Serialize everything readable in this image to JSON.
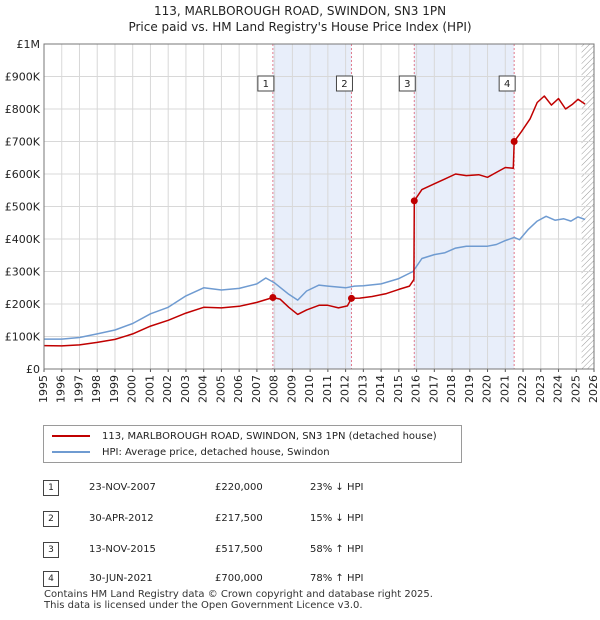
{
  "title_line1": "113, MARLBOROUGH ROAD, SWINDON, SN3 1PN",
  "title_line2": "Price paid vs. HM Land Registry's House Price Index (HPI)",
  "chart_data": {
    "type": "line",
    "title": "113, MARLBOROUGH ROAD, SWINDON, SN3 1PN - Price paid vs. HM Land Registry's House Price Index (HPI)",
    "xlim": [
      1995,
      2026
    ],
    "ylim": [
      0,
      1000000
    ],
    "xticks": [
      1995,
      1996,
      1997,
      1998,
      1999,
      2000,
      2001,
      2002,
      2003,
      2004,
      2005,
      2006,
      2007,
      2008,
      2009,
      2010,
      2011,
      2012,
      2013,
      2014,
      2015,
      2016,
      2017,
      2018,
      2019,
      2020,
      2021,
      2022,
      2023,
      2024,
      2025,
      2026
    ],
    "yticks": [
      {
        "v": 0,
        "label": "£0"
      },
      {
        "v": 100000,
        "label": "£100K"
      },
      {
        "v": 200000,
        "label": "£200K"
      },
      {
        "v": 300000,
        "label": "£300K"
      },
      {
        "v": 400000,
        "label": "£400K"
      },
      {
        "v": 500000,
        "label": "£500K"
      },
      {
        "v": 600000,
        "label": "£600K"
      },
      {
        "v": 700000,
        "label": "£700K"
      },
      {
        "v": 800000,
        "label": "£800K"
      },
      {
        "v": 900000,
        "label": "£900K"
      },
      {
        "v": 1000000,
        "label": "£1M"
      }
    ],
    "shaded_spans": [
      [
        2007.9,
        2012.33
      ],
      [
        2015.87,
        2021.5
      ]
    ],
    "future_hatch_from": 2025.3,
    "series": [
      {
        "name": "113, MARLBOROUGH ROAD, SWINDON, SN3 1PN (detached house)",
        "color": "#c00000",
        "points": [
          [
            1995,
            72000
          ],
          [
            1996,
            71000
          ],
          [
            1997,
            74000
          ],
          [
            1998,
            82000
          ],
          [
            1999,
            91000
          ],
          [
            2000,
            108000
          ],
          [
            2001,
            132000
          ],
          [
            2002,
            150000
          ],
          [
            2003,
            172000
          ],
          [
            2004,
            190000
          ],
          [
            2005,
            188000
          ],
          [
            2006,
            193000
          ],
          [
            2007,
            205000
          ],
          [
            2007.9,
            220000
          ],
          [
            2008.3,
            215000
          ],
          [
            2008.8,
            190000
          ],
          [
            2009.3,
            168000
          ],
          [
            2009.8,
            182000
          ],
          [
            2010.5,
            196000
          ],
          [
            2011,
            196000
          ],
          [
            2011.6,
            188000
          ],
          [
            2012.1,
            194000
          ],
          [
            2012.33,
            217500
          ],
          [
            2012.8,
            218000
          ],
          [
            2013.5,
            223000
          ],
          [
            2014.3,
            232000
          ],
          [
            2015,
            245000
          ],
          [
            2015.6,
            255000
          ],
          [
            2015.85,
            275000
          ],
          [
            2015.87,
            517500
          ],
          [
            2016.3,
            552000
          ],
          [
            2017,
            570000
          ],
          [
            2017.6,
            585000
          ],
          [
            2018.2,
            600000
          ],
          [
            2018.8,
            595000
          ],
          [
            2019.5,
            598000
          ],
          [
            2020,
            590000
          ],
          [
            2020.5,
            605000
          ],
          [
            2021,
            620000
          ],
          [
            2021.45,
            618000
          ],
          [
            2021.5,
            700000
          ],
          [
            2021.9,
            730000
          ],
          [
            2022.4,
            770000
          ],
          [
            2022.8,
            820000
          ],
          [
            2023.2,
            840000
          ],
          [
            2023.6,
            812000
          ],
          [
            2024,
            832000
          ],
          [
            2024.4,
            800000
          ],
          [
            2024.8,
            815000
          ],
          [
            2025.1,
            830000
          ],
          [
            2025.5,
            815000
          ]
        ],
        "markers": [
          [
            2007.9,
            220000
          ],
          [
            2012.33,
            217500
          ],
          [
            2015.87,
            517500
          ],
          [
            2021.5,
            700000
          ]
        ]
      },
      {
        "name": "HPI: Average price, detached house, Swindon",
        "color": "#6f9bd1",
        "points": [
          [
            1995,
            92000
          ],
          [
            1996,
            92000
          ],
          [
            1997,
            97000
          ],
          [
            1998,
            108000
          ],
          [
            1999,
            120000
          ],
          [
            2000,
            140000
          ],
          [
            2001,
            170000
          ],
          [
            2002,
            190000
          ],
          [
            2003,
            225000
          ],
          [
            2004,
            250000
          ],
          [
            2005,
            243000
          ],
          [
            2006,
            248000
          ],
          [
            2007,
            262000
          ],
          [
            2007.5,
            280000
          ],
          [
            2008,
            265000
          ],
          [
            2008.8,
            230000
          ],
          [
            2009.3,
            212000
          ],
          [
            2009.8,
            240000
          ],
          [
            2010.5,
            258000
          ],
          [
            2011,
            255000
          ],
          [
            2012,
            250000
          ],
          [
            2012.5,
            255000
          ],
          [
            2013,
            256000
          ],
          [
            2014,
            262000
          ],
          [
            2015,
            278000
          ],
          [
            2015.8,
            300000
          ],
          [
            2016.3,
            340000
          ],
          [
            2017,
            352000
          ],
          [
            2017.6,
            358000
          ],
          [
            2018.2,
            372000
          ],
          [
            2018.8,
            378000
          ],
          [
            2019.5,
            378000
          ],
          [
            2020,
            378000
          ],
          [
            2020.5,
            383000
          ],
          [
            2021,
            395000
          ],
          [
            2021.5,
            405000
          ],
          [
            2021.8,
            398000
          ],
          [
            2022.3,
            430000
          ],
          [
            2022.8,
            455000
          ],
          [
            2023.3,
            470000
          ],
          [
            2023.8,
            458000
          ],
          [
            2024.3,
            462000
          ],
          [
            2024.7,
            455000
          ],
          [
            2025.1,
            468000
          ],
          [
            2025.5,
            460000
          ]
        ]
      }
    ],
    "annotations": [
      {
        "label": "1",
        "x": 2007.9
      },
      {
        "label": "2",
        "x": 2012.33
      },
      {
        "label": "3",
        "x": 2015.87
      },
      {
        "label": "4",
        "x": 2021.5
      }
    ]
  },
  "legend": {
    "items": [
      {
        "label": "113, MARLBOROUGH ROAD, SWINDON, SN3 1PN (detached house)",
        "color": "#c00000"
      },
      {
        "label": "HPI: Average price, detached house, Swindon",
        "color": "#6f9bd1"
      }
    ]
  },
  "transactions": [
    {
      "num": "1",
      "date": "23-NOV-2007",
      "price": "£220,000",
      "hpi": "23% ↓ HPI"
    },
    {
      "num": "2",
      "date": "30-APR-2012",
      "price": "£217,500",
      "hpi": "15% ↓ HPI"
    },
    {
      "num": "3",
      "date": "13-NOV-2015",
      "price": "£517,500",
      "hpi": "58% ↑ HPI"
    },
    {
      "num": "4",
      "date": "30-JUN-2021",
      "price": "£700,000",
      "hpi": "78% ↑ HPI"
    }
  ],
  "footer_line1": "Contains HM Land Registry data © Crown copyright and database right 2025.",
  "footer_line2": "This data is licensed under the Open Government Licence v3.0."
}
